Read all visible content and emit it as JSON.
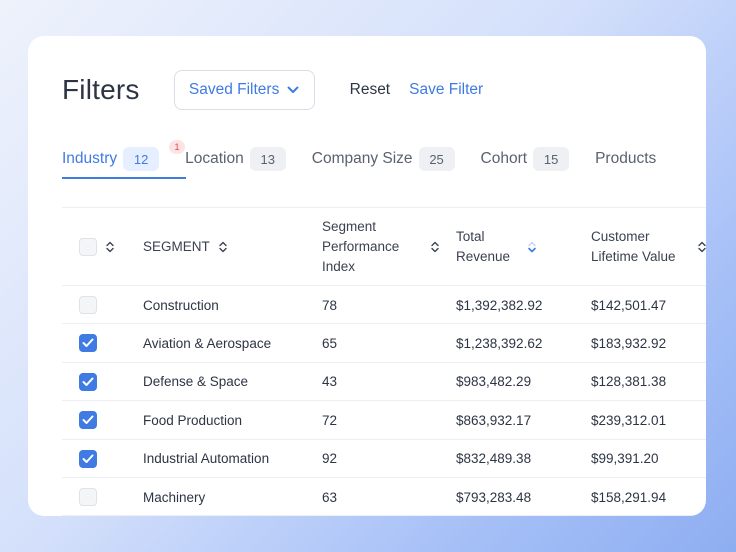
{
  "header": {
    "title": "Filters",
    "saved_filters_label": "Saved Filters",
    "reset_label": "Reset",
    "save_filter_label": "Save Filter"
  },
  "tabs": [
    {
      "label": "Industry",
      "count": "12",
      "badge": "1",
      "active": true
    },
    {
      "label": "Location",
      "count": "13"
    },
    {
      "label": "Company Size",
      "count": "25"
    },
    {
      "label": "Cohort",
      "count": "15"
    },
    {
      "label": "Products"
    }
  ],
  "table": {
    "columns": {
      "segment": "SEGMENT",
      "performance": "Segment Performance Index",
      "revenue": "Total Revenue",
      "ltv": "Customer Lifetime Value"
    },
    "rows": [
      {
        "checked": false,
        "segment": "Construction",
        "performance": "78",
        "revenue": "$1,392,382.92",
        "ltv": "$142,501.47"
      },
      {
        "checked": true,
        "segment": "Aviation & Aerospace",
        "performance": "65",
        "revenue": "$1,238,392.62",
        "ltv": "$183,932.92"
      },
      {
        "checked": true,
        "segment": "Defense & Space",
        "performance": "43",
        "revenue": "$983,482.29",
        "ltv": "$128,381.38"
      },
      {
        "checked": true,
        "segment": "Food Production",
        "performance": "72",
        "revenue": "$863,932.17",
        "ltv": "$239,312.01"
      },
      {
        "checked": true,
        "segment": "Industrial Automation",
        "performance": "92",
        "revenue": "$832,489.38",
        "ltv": "$99,391.20"
      },
      {
        "checked": false,
        "segment": "Machinery",
        "performance": "63",
        "revenue": "$793,283.48",
        "ltv": "$158,291.94"
      }
    ]
  },
  "colors": {
    "accent": "#3f7be3",
    "badge_bg": "#fde3e3",
    "badge_text": "#e04848"
  }
}
